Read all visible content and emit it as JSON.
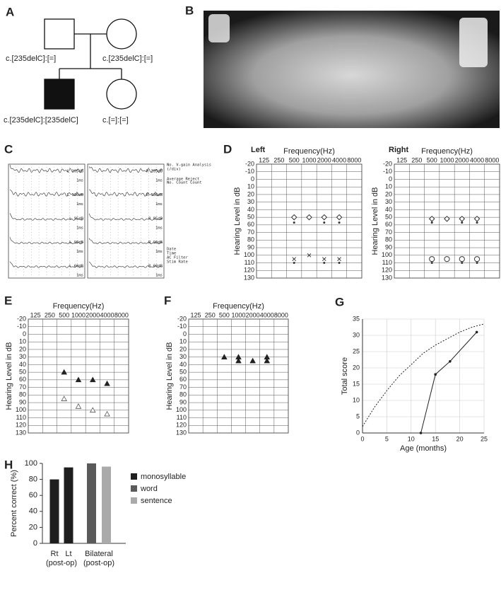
{
  "panel_labels": [
    "A",
    "B",
    "C",
    "D",
    "E",
    "F",
    "G",
    "H"
  ],
  "pedigree": {
    "father": "c.[235delC]:[=]",
    "mother": "c.[235delC]:[=]",
    "son": "c.[235delC]:[235delC]",
    "daughter": "c.[=]:[=]"
  },
  "abr": {
    "left": [
      {
        "level": "L 105dB",
        "scale": "1ms"
      },
      {
        "level": "L 100dB",
        "scale": "1ms"
      },
      {
        "level": "L 95dB",
        "scale": "1ms"
      },
      {
        "level": "L 90dB",
        "scale": "1ms"
      },
      {
        "level": "L 60dB",
        "scale": "1ms"
      }
    ],
    "right": [
      {
        "level": "R 105dB",
        "scale": "1ms"
      },
      {
        "level": "R 100dB",
        "scale": "1ms"
      },
      {
        "level": "R 95dB",
        "scale": "1ms"
      },
      {
        "level": "R 90dB",
        "scale": "1ms"
      },
      {
        "level": "R 60dB",
        "scale": "1ms"
      }
    ],
    "notes": [
      "No. V-gain Analysis",
      "(/div)",
      "Average Reject",
      "No. Count  Count",
      "Date",
      "Time",
      "AC Filter",
      "Stim Rate"
    ]
  },
  "chart_data": [
    {
      "type": "audiogram",
      "title": "Left",
      "x_label": "Frequency(Hz)",
      "y_label": "Hearing Level in dB",
      "categories": [
        "125",
        "250",
        "500",
        "1000",
        "2000",
        "4000",
        "8000"
      ],
      "ylim": [
        -20,
        130
      ],
      "y_inverted": true,
      "yticks": [
        -20,
        -10,
        0,
        10,
        20,
        30,
        40,
        50,
        60,
        70,
        80,
        90,
        100,
        110,
        120,
        130
      ],
      "grid": true,
      "series": [
        {
          "marker": "diamond",
          "color": "#333333",
          "values": [
            null,
            null,
            50,
            50,
            50,
            50,
            null
          ]
        },
        {
          "marker": "dot",
          "color": "#333333",
          "values": [
            null,
            null,
            57,
            null,
            57,
            57,
            null
          ]
        },
        {
          "marker": "cross",
          "color": "#333333",
          "values": [
            null,
            null,
            105,
            100,
            105,
            105,
            null
          ]
        },
        {
          "marker": "dot",
          "color": "#333333",
          "values": [
            null,
            null,
            110,
            null,
            110,
            110,
            null
          ]
        }
      ]
    },
    {
      "type": "audiogram",
      "title": "Right",
      "x_label": "Frequency(Hz)",
      "y_label": "Hearing Level in dB",
      "categories": [
        "125",
        "250",
        "500",
        "1000",
        "2000",
        "4000",
        "8000"
      ],
      "ylim": [
        -20,
        130
      ],
      "y_inverted": true,
      "yticks": [
        -20,
        -10,
        0,
        10,
        20,
        30,
        40,
        50,
        60,
        70,
        80,
        90,
        100,
        110,
        120,
        130
      ],
      "grid": true,
      "series": [
        {
          "marker": "diamond",
          "color": "#333333",
          "values": [
            null,
            null,
            52,
            52,
            52,
            52,
            null
          ]
        },
        {
          "marker": "dot",
          "color": "#333333",
          "values": [
            null,
            null,
            57,
            null,
            57,
            57,
            null
          ]
        },
        {
          "marker": "circle",
          "color": "#333333",
          "values": [
            null,
            null,
            105,
            105,
            105,
            105,
            null
          ]
        },
        {
          "marker": "dot",
          "color": "#333333",
          "values": [
            null,
            null,
            110,
            null,
            110,
            110,
            null
          ]
        }
      ]
    },
    {
      "type": "audiogram",
      "x_label": "Frequency(Hz)",
      "y_label": "Hearing Level in dB",
      "categories": [
        "125",
        "250",
        "500",
        "1000",
        "2000",
        "4000",
        "8000"
      ],
      "ylim": [
        -20,
        130
      ],
      "y_inverted": true,
      "yticks": [
        -20,
        -10,
        0,
        10,
        20,
        30,
        40,
        50,
        60,
        70,
        80,
        90,
        100,
        110,
        120,
        130
      ],
      "grid": true,
      "series": [
        {
          "marker": "triangle",
          "color": "#222222",
          "values": [
            null,
            null,
            50,
            60,
            60,
            65,
            null
          ]
        },
        {
          "marker": "triangle-open",
          "color": "#555555",
          "values": [
            null,
            null,
            85,
            95,
            100,
            105,
            null
          ]
        }
      ]
    },
    {
      "type": "audiogram",
      "x_label": "Frequency(Hz)",
      "y_label": "Hearing Level in dB",
      "categories": [
        "125",
        "250",
        "500",
        "1000",
        "2000",
        "4000",
        "8000"
      ],
      "ylim": [
        -20,
        130
      ],
      "y_inverted": true,
      "yticks": [
        -20,
        -10,
        0,
        10,
        20,
        30,
        40,
        50,
        60,
        70,
        80,
        90,
        100,
        110,
        120,
        130
      ],
      "grid": true,
      "series": [
        {
          "marker": "triangle",
          "color": "#222222",
          "values": [
            null,
            null,
            30,
            30,
            35,
            30,
            null
          ]
        },
        {
          "marker": "triangle",
          "color": "#222222",
          "values": [
            null,
            null,
            null,
            35,
            null,
            35,
            null
          ]
        }
      ]
    },
    {
      "type": "line",
      "x_label": "Age (months)",
      "y_label": "Total score",
      "xlim": [
        0,
        25
      ],
      "xticks": [
        0,
        5,
        10,
        15,
        20,
        25
      ],
      "ylim": [
        0,
        35
      ],
      "yticks": [
        0,
        5,
        10,
        15,
        20,
        25,
        30,
        35
      ],
      "grid": true,
      "series": [
        {
          "line_style": "dotted",
          "color": "#222222",
          "x": [
            0,
            2.5,
            5,
            7.5,
            10,
            12.5,
            15,
            17.5,
            20,
            22.5,
            25
          ],
          "values": [
            2,
            8,
            13,
            17.5,
            21,
            24.5,
            27,
            29,
            31,
            32.5,
            33.5
          ]
        },
        {
          "line_style": "solid",
          "marker": "dot",
          "color": "#222222",
          "x": [
            12,
            15,
            18,
            23.5
          ],
          "values": [
            0,
            18,
            22,
            31
          ]
        }
      ]
    },
    {
      "type": "bar",
      "y_label": "Percent correct (%)",
      "categories": [
        "Rt",
        "Lt",
        "Bilateral"
      ],
      "group_labels": [
        "(post-op)",
        "(post-op)"
      ],
      "ylim": [
        0,
        100
      ],
      "yticks": [
        0,
        20,
        40,
        60,
        80,
        100
      ],
      "series": [
        {
          "name": "monosyllable",
          "color": "#1e1e1e",
          "values": [
            80,
            95,
            null
          ]
        },
        {
          "name": "word",
          "color": "#5a5a5a",
          "values": [
            null,
            null,
            100
          ]
        },
        {
          "name": "sentence",
          "color": "#aaaaaa",
          "values": [
            null,
            null,
            96
          ]
        }
      ]
    }
  ]
}
